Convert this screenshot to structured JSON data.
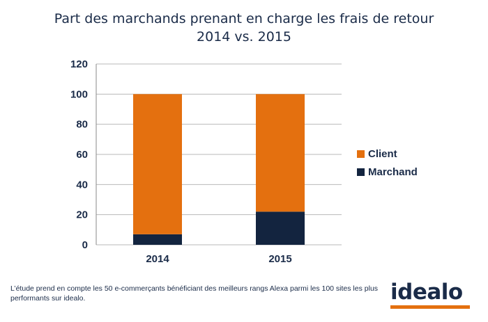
{
  "chart_data": {
    "type": "bar",
    "stacked": true,
    "title": "Part des marchands prenant en charge les frais de retour",
    "subtitle": "2014 vs. 2015",
    "categories": [
      "2014",
      "2015"
    ],
    "series": [
      {
        "name": "Marchand",
        "values": [
          7,
          22
        ],
        "color": "#13243f"
      },
      {
        "name": "Client",
        "values": [
          93,
          78
        ],
        "color": "#e4700f"
      }
    ],
    "ylim": [
      0,
      120
    ],
    "yticks": [
      0,
      20,
      40,
      60,
      80,
      100,
      120
    ],
    "ytick_labels": [
      "0",
      "20",
      "40",
      "60",
      "80",
      "100",
      "120"
    ],
    "grid": true,
    "legend_position": "right",
    "legend": [
      {
        "label": "Client",
        "color": "#e4700f"
      },
      {
        "label": "Marchand",
        "color": "#13243f"
      }
    ]
  },
  "footnote": "L’étude prend en compte les 50 e-commerçants bénéficiant des meilleurs rangs Alexa parmi les 100 sites les plus performants sur idealo.",
  "logo": {
    "text": "idealo",
    "accent_color": "#e4700f",
    "text_color": "#1a2b48"
  }
}
